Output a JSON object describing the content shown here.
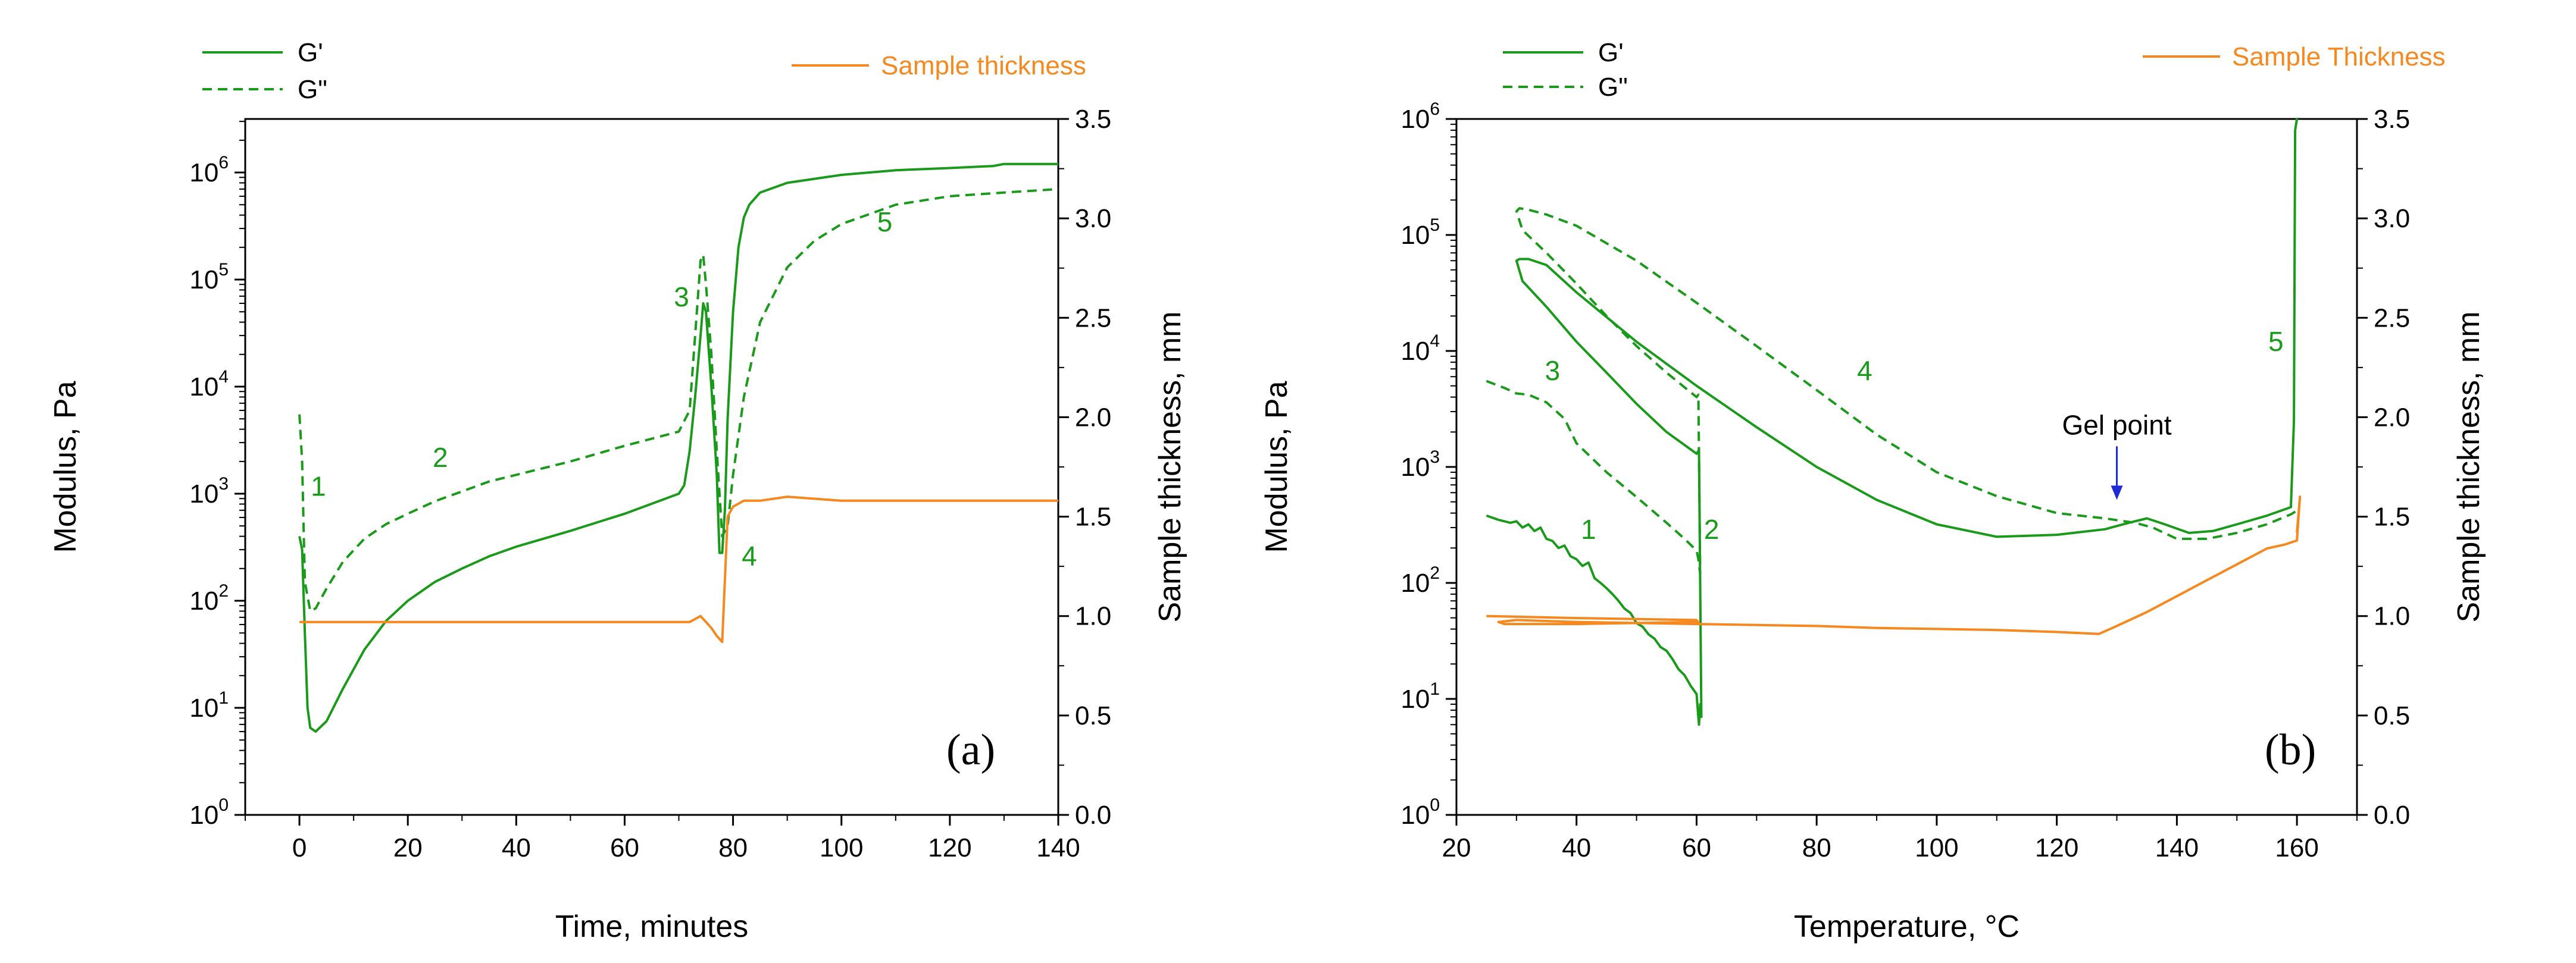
{
  "colors": {
    "modulus": "#1a9a1a",
    "thickness": "#f5891f",
    "axis": "#000000",
    "arrow": "#1f2bd6"
  },
  "chart_data": [
    {
      "type": "line",
      "panel_label": "(a)",
      "xlabel": "Time, minutes",
      "ylabel_left": "Modulus, Pa",
      "ylabel_right": "Sample thickness, mm",
      "xlim": [
        -10,
        140
      ],
      "ylim_left_log10": [
        0,
        6.5
      ],
      "ylim_right": [
        0,
        3.5
      ],
      "x_ticks": [
        "0",
        "20",
        "40",
        "60",
        "80",
        "100",
        "120",
        "140"
      ],
      "y_left_ticks": [
        {
          "base": "10",
          "exp": "0"
        },
        {
          "base": "10",
          "exp": "1"
        },
        {
          "base": "10",
          "exp": "2"
        },
        {
          "base": "10",
          "exp": "3"
        },
        {
          "base": "10",
          "exp": "4"
        },
        {
          "base": "10",
          "exp": "5"
        },
        {
          "base": "10",
          "exp": "6"
        }
      ],
      "y_right_ticks": [
        "0.0",
        "0.5",
        "1.0",
        "1.5",
        "2.0",
        "2.5",
        "3.0",
        "3.5"
      ],
      "legend_left": [
        "G'",
        "G\""
      ],
      "legend_right": [
        "Sample thickness"
      ],
      "series": [
        {
          "name": "G'",
          "axis": "left",
          "style": "solid",
          "x": [
            0,
            0.5,
            1,
            1.5,
            2,
            3,
            5,
            8,
            12,
            16,
            20,
            25,
            30,
            35,
            40,
            50,
            60,
            70,
            71,
            72,
            73,
            74,
            74.5,
            75,
            76,
            77,
            77.5,
            78,
            78.5,
            79,
            80,
            81,
            82,
            83,
            85,
            90,
            100,
            110,
            120,
            128,
            130,
            135,
            140
          ],
          "y": [
            400,
            300,
            50,
            10,
            6.5,
            6,
            7.5,
            15,
            35,
            65,
            100,
            150,
            200,
            260,
            320,
            450,
            650,
            1000,
            1200,
            2500,
            8000,
            30000,
            60000,
            50000,
            10000,
            1500,
            280,
            280,
            700,
            5000,
            50000,
            200000,
            380000,
            500000,
            650000,
            800000,
            950000,
            1050000,
            1100000,
            1150000,
            1200000,
            1200000,
            1200000
          ]
        },
        {
          "name": "G\"",
          "axis": "left",
          "style": "dashed",
          "x": [
            0,
            0.5,
            1,
            2,
            3,
            5,
            8,
            12,
            16,
            20,
            25,
            30,
            35,
            40,
            50,
            60,
            70,
            72,
            73,
            74,
            74.5,
            75,
            76,
            77,
            78,
            79,
            80,
            82,
            85,
            90,
            95,
            100,
            110,
            120,
            130,
            140
          ],
          "y": [
            5500,
            2000,
            150,
            80,
            85,
            130,
            230,
            380,
            520,
            650,
            850,
            1050,
            1300,
            1500,
            2000,
            2800,
            3800,
            6000,
            30000,
            150000,
            170000,
            90000,
            20000,
            2500,
            400,
            500,
            1500,
            8000,
            40000,
            130000,
            230000,
            330000,
            500000,
            600000,
            650000,
            700000
          ]
        },
        {
          "name": "Sample thickness",
          "axis": "right",
          "style": "solid",
          "x": [
            0,
            20,
            40,
            60,
            72,
            74,
            75,
            76,
            77,
            78,
            79,
            80,
            82,
            85,
            90,
            100,
            110,
            120,
            130,
            140
          ],
          "y": [
            0.97,
            0.97,
            0.97,
            0.97,
            0.97,
            1.0,
            0.97,
            0.94,
            0.9,
            0.87,
            1.5,
            1.55,
            1.58,
            1.58,
            1.6,
            1.58,
            1.58,
            1.58,
            1.58,
            1.58
          ]
        }
      ],
      "annotations": [
        {
          "text": "1",
          "x": 3.5,
          "log10y": 2.98
        },
        {
          "text": "2",
          "x": 26,
          "log10y": 3.25
        },
        {
          "text": "3",
          "x": 70.5,
          "log10y": 4.75
        },
        {
          "text": "4",
          "x": 83,
          "log10y": 2.33
        },
        {
          "text": "5",
          "x": 108,
          "log10y": 5.45
        }
      ]
    },
    {
      "type": "line",
      "panel_label": "(b)",
      "xlabel": "Temperature, °C",
      "ylabel_left": "Modulus, Pa",
      "ylabel_right": "Sample thickness, mm",
      "xlim": [
        20,
        170
      ],
      "ylim_left_log10": [
        0,
        6
      ],
      "ylim_right": [
        0,
        3.5
      ],
      "x_ticks": [
        "20",
        "40",
        "60",
        "80",
        "100",
        "120",
        "140",
        "160"
      ],
      "y_left_ticks": [
        {
          "base": "10",
          "exp": "0"
        },
        {
          "base": "10",
          "exp": "1"
        },
        {
          "base": "10",
          "exp": "2"
        },
        {
          "base": "10",
          "exp": "3"
        },
        {
          "base": "10",
          "exp": "4"
        },
        {
          "base": "10",
          "exp": "5"
        },
        {
          "base": "10",
          "exp": "6"
        }
      ],
      "y_right_ticks": [
        "0.0",
        "0.5",
        "1.0",
        "1.5",
        "2.0",
        "2.5",
        "3.0",
        "3.5"
      ],
      "legend_left": [
        "G'",
        "G\""
      ],
      "legend_right": [
        "Sample Thickness"
      ],
      "series": [
        {
          "name": "G'",
          "axis": "left",
          "style": "solid",
          "x": [
            25,
            27,
            29,
            30,
            31,
            32,
            33,
            34,
            35,
            36,
            37,
            38,
            39,
            40,
            41,
            42,
            43,
            44,
            45,
            46,
            47,
            48,
            49,
            50,
            51,
            52,
            53,
            54,
            55,
            56,
            57,
            58,
            59,
            60,
            60.2,
            60.4,
            60.6,
            60.8,
            60.4,
            60,
            55,
            50,
            45,
            40,
            35,
            31,
            30,
            30.5,
            31,
            32,
            35,
            40,
            50,
            60,
            70,
            80,
            90,
            100,
            110,
            120,
            128,
            132,
            135,
            138,
            142,
            146,
            150,
            155,
            159,
            159.5,
            159.7,
            160,
            160.2
          ],
          "y": [
            380,
            350,
            330,
            340,
            300,
            320,
            280,
            300,
            240,
            230,
            200,
            210,
            170,
            160,
            140,
            150,
            110,
            100,
            90,
            80,
            70,
            60,
            55,
            45,
            42,
            36,
            33,
            28,
            26,
            22,
            18,
            16,
            13,
            11,
            8,
            6,
            9,
            7,
            1400,
            1300,
            2000,
            3500,
            6500,
            12000,
            24000,
            40000,
            60000,
            62000,
            62000,
            62000,
            55000,
            32000,
            12000,
            5000,
            2200,
            1000,
            520,
            320,
            250,
            260,
            290,
            330,
            360,
            320,
            270,
            280,
            320,
            380,
            450,
            2500,
            800000,
            1000000,
            1000000
          ]
        },
        {
          "name": "G\"",
          "axis": "left",
          "style": "dashed",
          "x": [
            25,
            28,
            30,
            32,
            35,
            38,
            40,
            45,
            50,
            55,
            58,
            60,
            60.3,
            60.6,
            60.3,
            60,
            55,
            50,
            45,
            40,
            35,
            31,
            30,
            30.5,
            32,
            35,
            40,
            50,
            60,
            70,
            80,
            90,
            100,
            110,
            120,
            128,
            133,
            136,
            140,
            145,
            150,
            155,
            159,
            160
          ],
          "y": [
            5500,
            4800,
            4300,
            4200,
            3600,
            2600,
            1600,
            900,
            550,
            330,
            240,
            190,
            160,
            120,
            4200,
            4000,
            6500,
            11000,
            20000,
            38000,
            70000,
            110000,
            160000,
            170000,
            165000,
            150000,
            120000,
            60000,
            26000,
            11000,
            4600,
            1900,
            900,
            560,
            400,
            360,
            330,
            300,
            240,
            240,
            270,
            320,
            390,
            420
          ]
        },
        {
          "name": "Sample Thickness",
          "axis": "right",
          "style": "solid",
          "x": [
            25,
            40,
            60,
            60.5,
            60,
            40,
            28,
            27,
            30,
            40,
            50,
            60,
            70,
            80,
            90,
            100,
            110,
            120,
            127,
            130,
            135,
            140,
            145,
            150,
            155,
            158,
            159,
            160,
            160.5,
            160
          ],
          "y": [
            1.0,
            0.99,
            0.98,
            0.96,
            0.97,
            0.96,
            0.96,
            0.97,
            0.98,
            0.97,
            0.965,
            0.96,
            0.955,
            0.95,
            0.94,
            0.935,
            0.93,
            0.92,
            0.91,
            0.95,
            1.02,
            1.1,
            1.18,
            1.26,
            1.34,
            1.36,
            1.37,
            1.38,
            1.6,
            1.42
          ]
        }
      ],
      "annotations": [
        {
          "text": "1",
          "x": 42,
          "log10y": 2.38
        },
        {
          "text": "2",
          "x": 62.5,
          "log10y": 2.38
        },
        {
          "text": "3",
          "x": 36,
          "log10y": 3.75
        },
        {
          "text": "4",
          "x": 88,
          "log10y": 3.75
        },
        {
          "text": "5",
          "x": 156.5,
          "log10y": 4.0
        },
        {
          "text": "Gel point",
          "x": 130,
          "log10y": 3.28
        }
      ]
    }
  ]
}
